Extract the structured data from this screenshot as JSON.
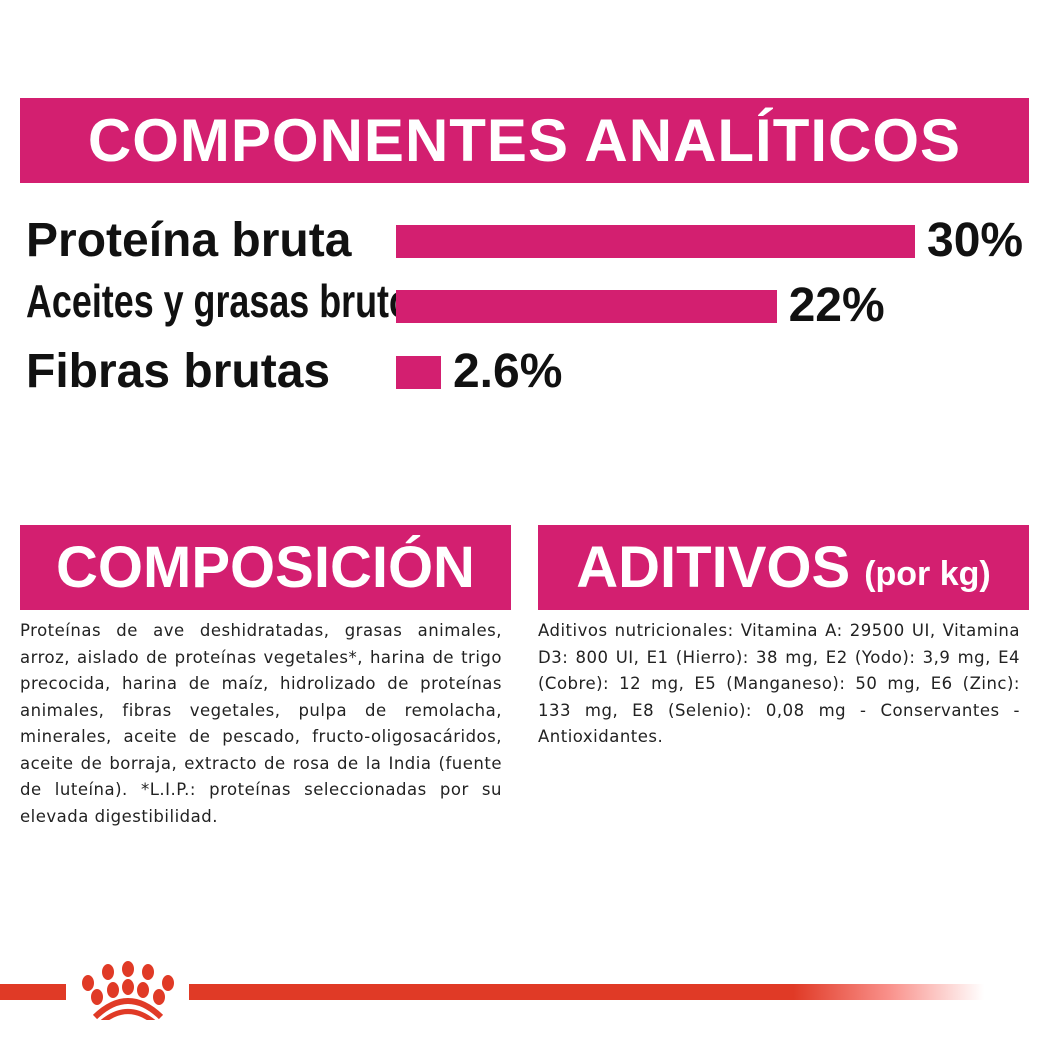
{
  "header": {
    "title": "COMPONENTES ANALÍTICOS"
  },
  "chart_data": {
    "type": "bar",
    "orientation": "horizontal",
    "categories": [
      "Proteína bruta",
      "Aceites y grasas brutos",
      "Fibras brutas"
    ],
    "values": [
      30,
      22,
      2.6
    ],
    "value_labels": [
      "30%",
      "22%",
      "2.6%"
    ],
    "color": "#d31f70"
  },
  "composicion": {
    "title": "COMPOSICIÓN",
    "text": "Proteínas de ave deshidratadas, grasas animales, arroz, aislado de proteínas vegetales*, harina de trigo precocida, harina de maíz, hidrolizado de proteínas animales, fibras vegetales, pulpa de remolacha, minerales, aceite de pescado, fructo-oligosacáridos, aceite de borraja, extracto de rosa de la India (fuente de luteína). *L.I.P.: proteínas seleccionadas por su elevada digestibilidad."
  },
  "aditivos": {
    "title": "ADITIVOS",
    "unit": "(por kg)",
    "text": "Aditivos nutricionales: Vitamina A: 29500 UI, Vitamina D3: 800 UI, E1 (Hierro): 38 mg, E2 (Yodo): 3,9 mg, E4 (Cobre): 12 mg, E5 (Manganeso): 50 mg, E6 (Zinc): 133 mg, E8 (Selenio): 0,08 mg - Conservantes - Antioxidantes."
  },
  "colors": {
    "accent": "#d31f70",
    "brand_red": "#e03a26"
  },
  "footer": {
    "logo": "royal-canin-crown-logo"
  }
}
